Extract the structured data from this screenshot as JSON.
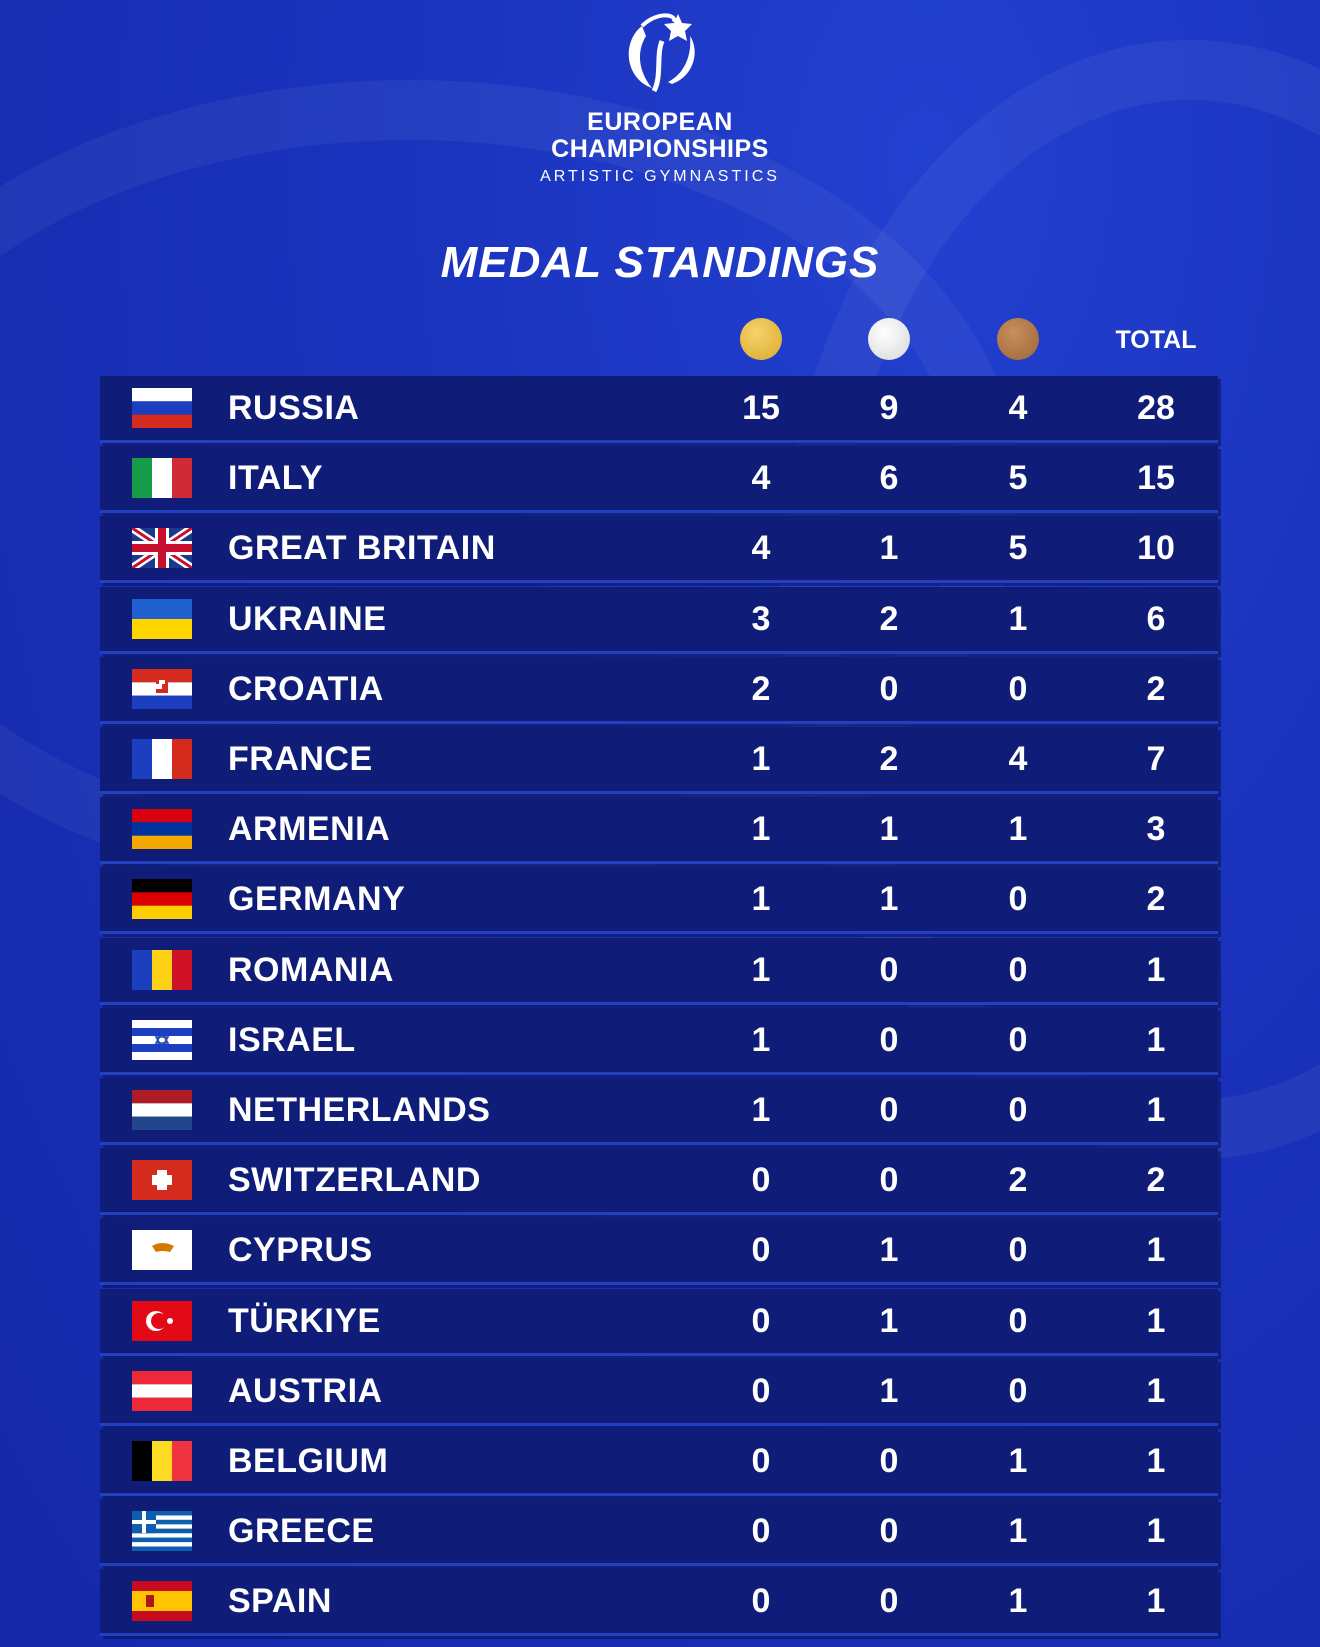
{
  "header": {
    "logo_line1": "EUROPEAN",
    "logo_line2": "CHAMPIONSHIPS",
    "logo_line3": "ARTISTIC GYMNASTICS",
    "title": "MEDAL STANDINGS"
  },
  "table": {
    "total_header": "TOTAL",
    "rows": [
      [
        "RUSSIA",
        15,
        9,
        4,
        28
      ],
      [
        "ITALY",
        4,
        6,
        5,
        15
      ],
      [
        "GREAT BRITAIN",
        4,
        1,
        5,
        10
      ],
      [
        "UKRAINE",
        3,
        2,
        1,
        6
      ],
      [
        "CROATIA",
        2,
        0,
        0,
        2
      ],
      [
        "FRANCE",
        1,
        2,
        4,
        7
      ],
      [
        "ARMENIA",
        1,
        1,
        1,
        3
      ],
      [
        "GERMANY",
        1,
        1,
        0,
        2
      ],
      [
        "ROMANIA",
        1,
        0,
        0,
        1
      ],
      [
        "ISRAEL",
        1,
        0,
        0,
        1
      ],
      [
        "NETHERLANDS",
        1,
        0,
        0,
        1
      ],
      [
        "SWITZERLAND",
        0,
        0,
        2,
        2
      ],
      [
        "CYPRUS",
        0,
        1,
        0,
        1
      ],
      [
        "TÜRKIYE",
        0,
        1,
        0,
        1
      ],
      [
        "AUSTRIA",
        0,
        1,
        0,
        1
      ],
      [
        "BELGIUM",
        0,
        0,
        1,
        1
      ],
      [
        "GREECE",
        0,
        0,
        1,
        1
      ],
      [
        "SPAIN",
        0,
        0,
        1,
        1
      ]
    ]
  }
}
